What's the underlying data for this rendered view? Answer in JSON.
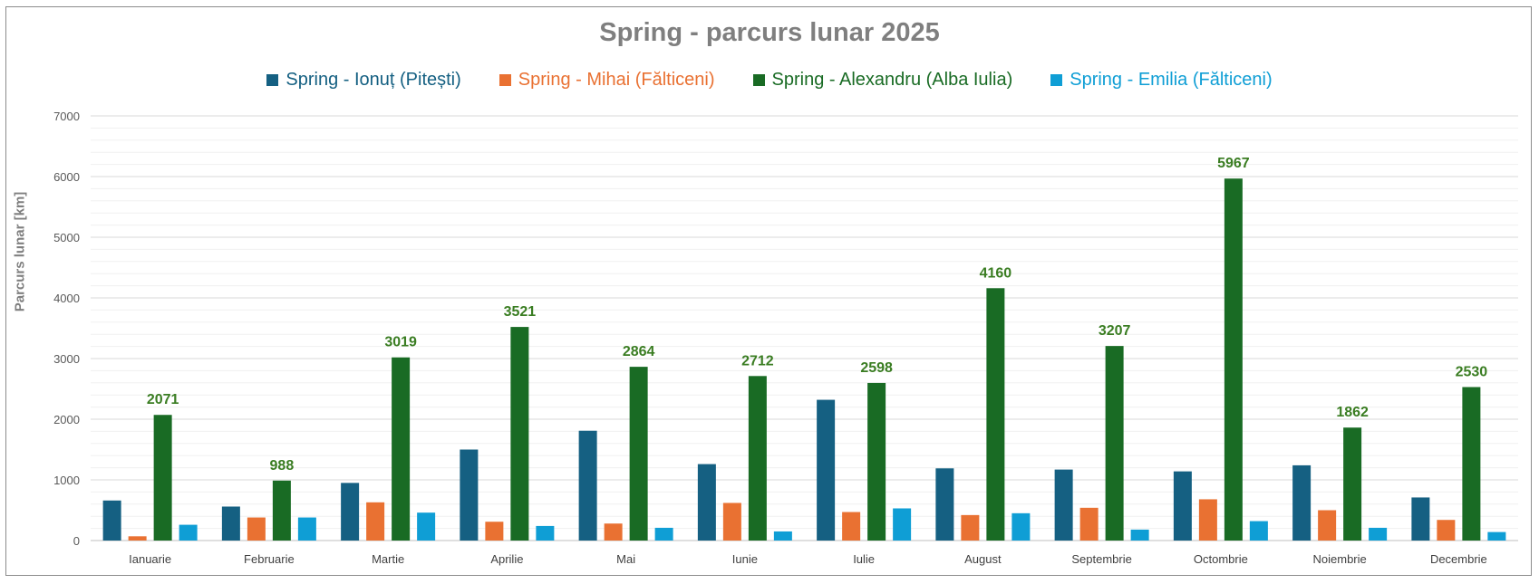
{
  "chart_data": {
    "type": "bar",
    "title": "Spring - parcurs lunar 2025",
    "ylabel": "Parcurs lunar [km]",
    "xlabel": "",
    "ylim": [
      0,
      7000
    ],
    "yticks": [
      0,
      1000,
      2000,
      3000,
      4000,
      5000,
      6000,
      7000
    ],
    "grid": true,
    "minor_grid_step": 200,
    "legend_position": "top",
    "categories": [
      "Ianuarie",
      "Februarie",
      "Martie",
      "Aprilie",
      "Mai",
      "Iunie",
      "Iulie",
      "August",
      "Septembrie",
      "Octombrie",
      "Noiembrie",
      "Decembrie"
    ],
    "series": [
      {
        "name": "Spring - Ionuț (Pitești)",
        "color": "#156082",
        "values": [
          660,
          560,
          950,
          1500,
          1810,
          1260,
          2320,
          1190,
          1170,
          1140,
          1240,
          710
        ],
        "show_labels": false
      },
      {
        "name": "Spring - Mihai (Fălticeni)",
        "color": "#e97132",
        "values": [
          70,
          380,
          630,
          310,
          280,
          620,
          470,
          420,
          540,
          680,
          500,
          340
        ],
        "show_labels": false
      },
      {
        "name": "Spring - Alexandru (Alba Iulia)",
        "color": "#196b24",
        "values": [
          2071,
          988,
          3019,
          3521,
          2864,
          2712,
          2598,
          4160,
          3207,
          5967,
          1862,
          2530
        ],
        "show_labels": true
      },
      {
        "name": "Spring - Emilia (Fălticeni)",
        "color": "#0f9ed5",
        "values": [
          260,
          380,
          460,
          240,
          210,
          150,
          530,
          450,
          180,
          320,
          210,
          140
        ],
        "show_labels": false
      }
    ],
    "data_label_color": "#3a7d22"
  }
}
